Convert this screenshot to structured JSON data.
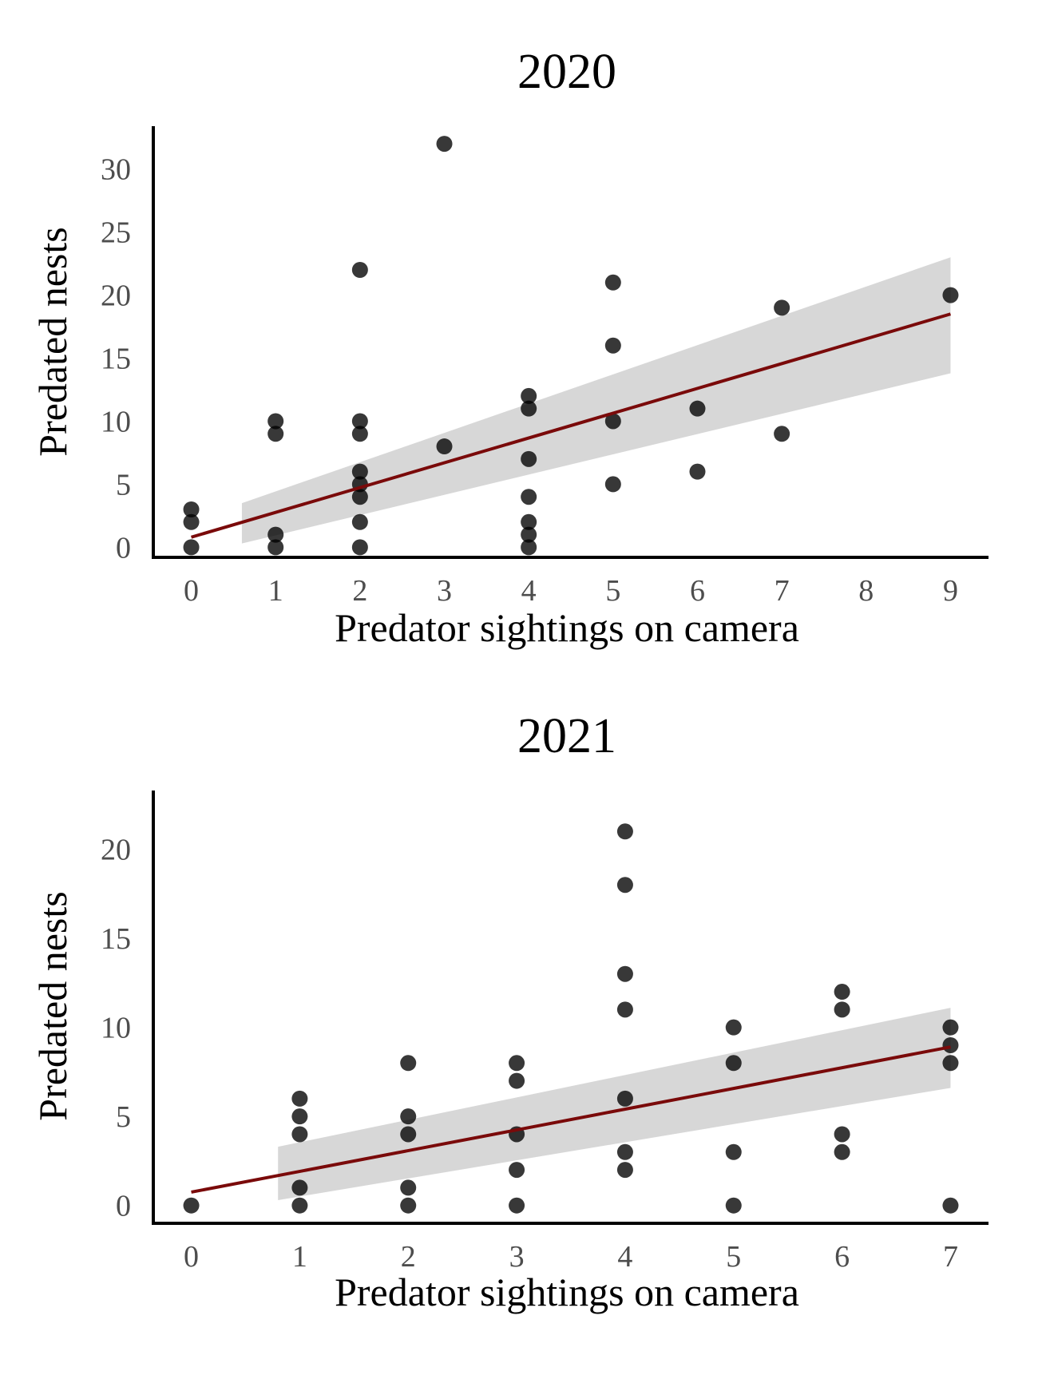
{
  "colors": {
    "point": "#000000",
    "fit_line": "#7a0a0a",
    "confidence_band": "#d3d3d3",
    "tick_text": "#4d4d4d"
  },
  "chart_data": [
    {
      "type": "scatter",
      "title": "2020",
      "xlabel": "Predator sightings on camera",
      "ylabel": "Predated nests",
      "xticks": [
        0,
        1,
        2,
        3,
        4,
        5,
        6,
        7,
        8,
        9
      ],
      "yticks": [
        0,
        5,
        10,
        15,
        20,
        25,
        30
      ],
      "xlim": [
        -0.45,
        9.45
      ],
      "ylim": [
        -0.8,
        33.4
      ],
      "grid": false,
      "points": [
        [
          0,
          0
        ],
        [
          0,
          2
        ],
        [
          0,
          3
        ],
        [
          1,
          0
        ],
        [
          1,
          1
        ],
        [
          1,
          9
        ],
        [
          1,
          10
        ],
        [
          2,
          0
        ],
        [
          2,
          2
        ],
        [
          2,
          4
        ],
        [
          2,
          5
        ],
        [
          2,
          6
        ],
        [
          2,
          9
        ],
        [
          2,
          10
        ],
        [
          2,
          22
        ],
        [
          3,
          8
        ],
        [
          3,
          32
        ],
        [
          4,
          0
        ],
        [
          4,
          1
        ],
        [
          4,
          2
        ],
        [
          4,
          4
        ],
        [
          4,
          7
        ],
        [
          4,
          11
        ],
        [
          4,
          12
        ],
        [
          5,
          5
        ],
        [
          5,
          10
        ],
        [
          5,
          16
        ],
        [
          5,
          21
        ],
        [
          6,
          6
        ],
        [
          6,
          11
        ],
        [
          7,
          9
        ],
        [
          7,
          19
        ],
        [
          9,
          20
        ]
      ],
      "fit_line": {
        "x": [
          0,
          9
        ],
        "y": [
          0.8,
          18.5
        ]
      },
      "confidence_band": {
        "x": [
          0.6,
          9
        ],
        "upper": [
          3.5,
          23.0
        ],
        "lower": [
          0.3,
          13.8
        ]
      }
    },
    {
      "type": "scatter",
      "title": "2021",
      "xlabel": "Predator sightings on camera",
      "ylabel": "Predated nests",
      "xticks": [
        0,
        1,
        2,
        3,
        4,
        5,
        6,
        7
      ],
      "yticks": [
        0,
        5,
        10,
        15,
        20
      ],
      "xlim": [
        -0.35,
        7.35
      ],
      "ylim": [
        -1.0,
        23.3
      ],
      "grid": false,
      "points": [
        [
          0,
          0
        ],
        [
          1,
          0
        ],
        [
          1,
          1
        ],
        [
          1,
          4
        ],
        [
          1,
          5
        ],
        [
          1,
          6
        ],
        [
          2,
          0
        ],
        [
          2,
          1
        ],
        [
          2,
          4
        ],
        [
          2,
          5
        ],
        [
          2,
          8
        ],
        [
          3,
          0
        ],
        [
          3,
          2
        ],
        [
          3,
          4
        ],
        [
          3,
          7
        ],
        [
          3,
          8
        ],
        [
          4,
          2
        ],
        [
          4,
          3
        ],
        [
          4,
          6
        ],
        [
          4,
          11
        ],
        [
          4,
          13
        ],
        [
          4,
          18
        ],
        [
          4,
          21
        ],
        [
          5,
          0
        ],
        [
          5,
          3
        ],
        [
          5,
          8
        ],
        [
          5,
          10
        ],
        [
          6,
          3
        ],
        [
          6,
          4
        ],
        [
          6,
          11
        ],
        [
          6,
          12
        ],
        [
          7,
          0
        ],
        [
          7,
          8
        ],
        [
          7,
          9
        ],
        [
          7,
          10
        ]
      ],
      "fit_line": {
        "x": [
          0,
          7
        ],
        "y": [
          0.75,
          8.9
        ]
      },
      "confidence_band": {
        "x": [
          0.8,
          7
        ],
        "upper": [
          3.3,
          11.1
        ],
        "lower": [
          0.3,
          6.6
        ]
      }
    }
  ]
}
